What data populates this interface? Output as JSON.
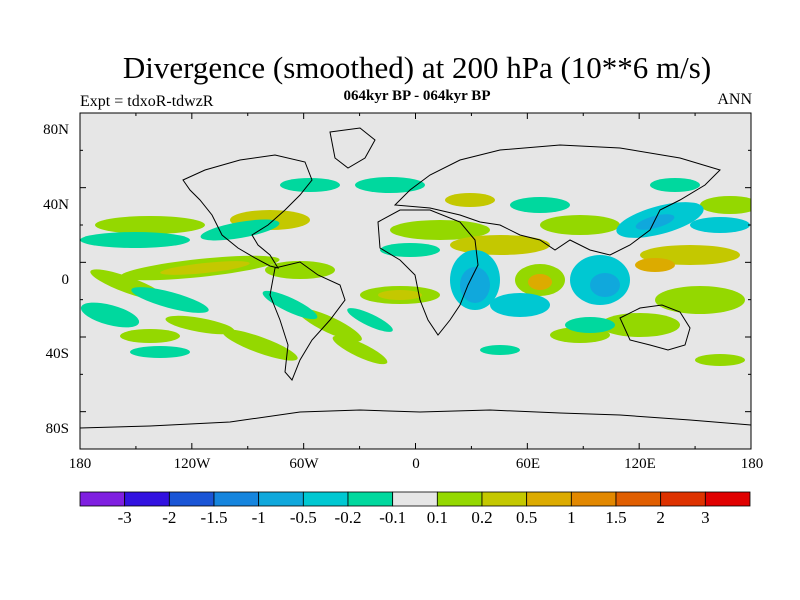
{
  "title": "Divergence (smoothed) at 200 hPa (10**6 m/s)",
  "subtitle": "064kyr BP - 064kyr BP",
  "expt": "Expt = tdxoR-tdwzR",
  "season": "ANN",
  "lat_ticks": [
    "80N",
    "40N",
    "0",
    "40S",
    "80S"
  ],
  "lon_ticks": [
    "180",
    "120W",
    "60W",
    "0",
    "60E",
    "120E",
    "180"
  ],
  "colorbar": {
    "labels": [
      "-3",
      "-2",
      "-1.5",
      "-1",
      "-0.5",
      "-0.2",
      "-0.1",
      "0.1",
      "0.2",
      "0.5",
      "1",
      "1.5",
      "2",
      "3"
    ],
    "colors": [
      "#7f1fe0",
      "#3212e0",
      "#1a55d6",
      "#1585de",
      "#10a8dc",
      "#00c8d2",
      "#00d89e",
      "#e6e6e6",
      "#94d800",
      "#c4c800",
      "#dcab00",
      "#e28800",
      "#e05e00",
      "#de3200",
      "#e00000"
    ]
  },
  "colors": {
    "ocean_neutral": "#e6e6e6",
    "coast": "#000000"
  }
}
